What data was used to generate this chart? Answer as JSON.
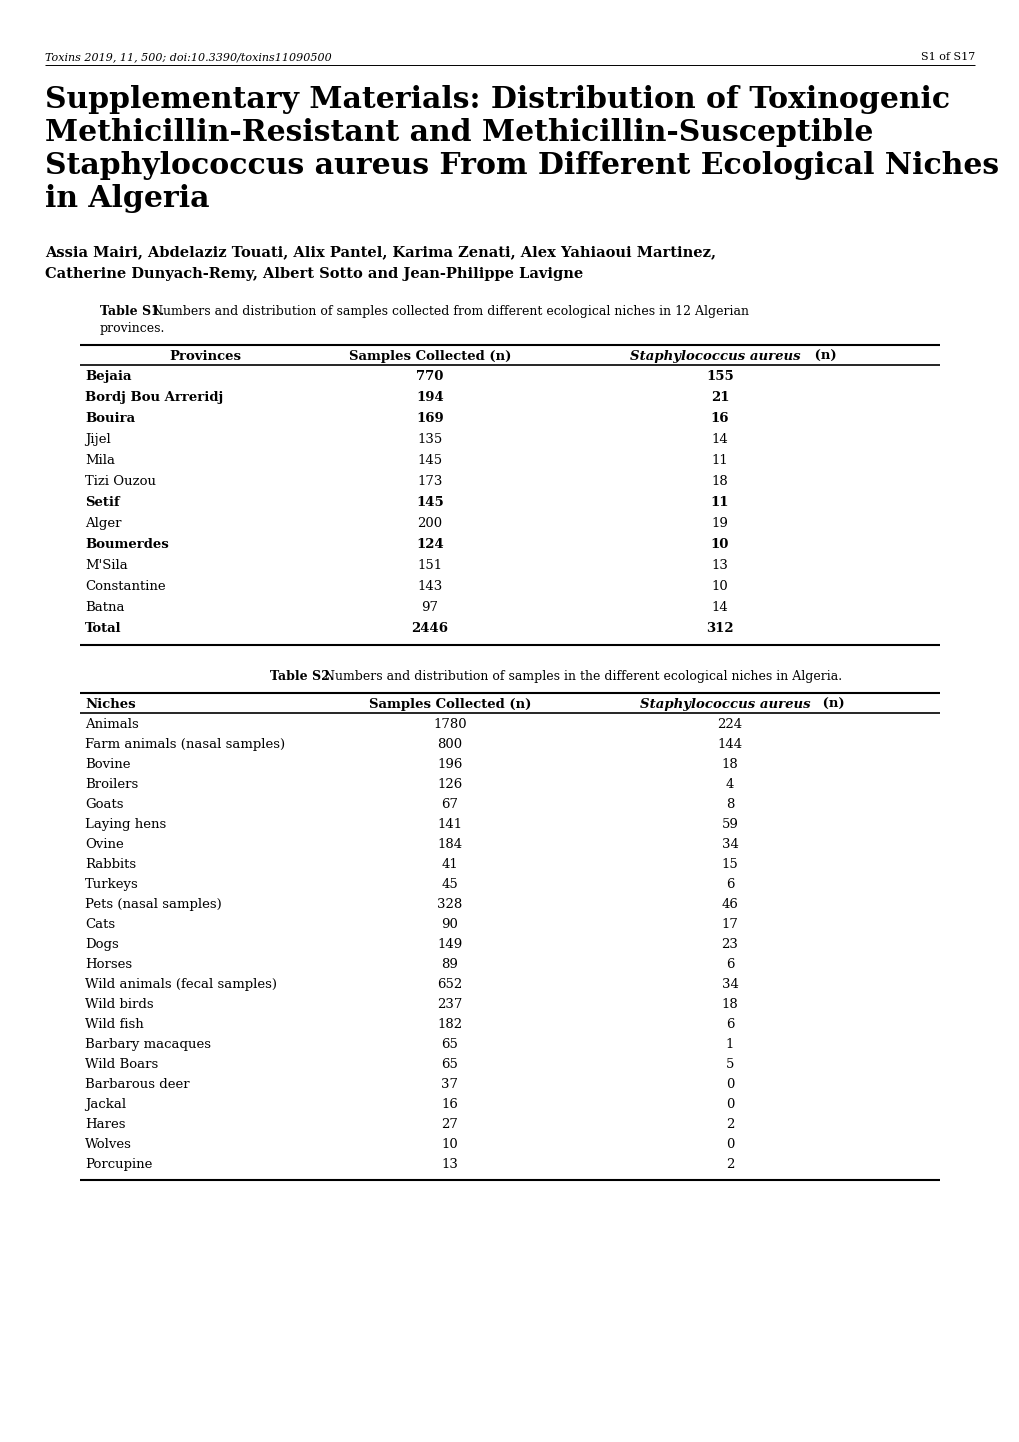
{
  "header_left": "Toxins 2019, 11, 500; doi:10.3390/toxins11090500",
  "header_right": "S1 of S17",
  "main_title_line1": "Supplementary Materials: Distribution of Toxinogenic",
  "main_title_line2": "Methicillin-Resistant and Methicillin-Susceptible",
  "main_title_line3": "Staphylococcus aureus From Different Ecological Niches",
  "main_title_line4": "in Algeria",
  "authors_line1": "Assia Mairi, Abdelaziz Touati, Alix Pantel, Karima Zenati, Alex Yahiaoui Martinez,",
  "authors_line2": "Catherine Dunyach-Remy, Albert Sotto and Jean-Philippe Lavigne",
  "table1_caption_bold": "Table S1.",
  "table1_caption_rest": " Numbers and distribution of samples collected from different ecological niches in 12 Algerian",
  "table1_caption_line2": "provinces.",
  "table1_headers": [
    "Provinces",
    "Samples Collected (n)",
    "Staphylococcus aureus (n)"
  ],
  "table1_data": [
    [
      "Bejaia",
      "770",
      "155",
      true
    ],
    [
      "Bordj Bou Arreridj",
      "194",
      "21",
      true
    ],
    [
      "Bouira",
      "169",
      "16",
      true
    ],
    [
      "Jijel",
      "135",
      "14",
      false
    ],
    [
      "Mila",
      "145",
      "11",
      false
    ],
    [
      "Tizi Ouzou",
      "173",
      "18",
      false
    ],
    [
      "Setif",
      "145",
      "11",
      true
    ],
    [
      "Alger",
      "200",
      "19",
      false
    ],
    [
      "Boumerdes",
      "124",
      "10",
      true
    ],
    [
      "M'Sila",
      "151",
      "13",
      false
    ],
    [
      "Constantine",
      "143",
      "10",
      false
    ],
    [
      "Batna",
      "97",
      "14",
      false
    ],
    [
      "Total",
      "2446",
      "312",
      true
    ]
  ],
  "table2_caption_bold": "Table S2.",
  "table2_caption_rest": " Numbers and distribution of samples in the different ecological niches in Algeria.",
  "table2_headers": [
    "Niches",
    "Samples Collected (n)",
    "Staphylococcus aureus (n)"
  ],
  "table2_data": [
    [
      "Animals",
      "1780",
      "224"
    ],
    [
      "Farm animals (nasal samples)",
      "800",
      "144"
    ],
    [
      "Bovine",
      "196",
      "18"
    ],
    [
      "Broilers",
      "126",
      "4"
    ],
    [
      "Goats",
      "67",
      "8"
    ],
    [
      "Laying hens",
      "141",
      "59"
    ],
    [
      "Ovine",
      "184",
      "34"
    ],
    [
      "Rabbits",
      "41",
      "15"
    ],
    [
      "Turkeys",
      "45",
      "6"
    ],
    [
      "Pets (nasal samples)",
      "328",
      "46"
    ],
    [
      "Cats",
      "90",
      "17"
    ],
    [
      "Dogs",
      "149",
      "23"
    ],
    [
      "Horses",
      "89",
      "6"
    ],
    [
      "Wild animals (fecal samples)",
      "652",
      "34"
    ],
    [
      "Wild birds",
      "237",
      "18"
    ],
    [
      "Wild fish",
      "182",
      "6"
    ],
    [
      "Barbary macaques",
      "65",
      "1"
    ],
    [
      "Wild Boars",
      "65",
      "5"
    ],
    [
      "Barbarous deer",
      "37",
      "0"
    ],
    [
      "Jackal",
      "16",
      "0"
    ],
    [
      "Hares",
      "27",
      "2"
    ],
    [
      "Wolves",
      "10",
      "0"
    ],
    [
      "Porcupine",
      "13",
      "2"
    ]
  ],
  "background_color": "#ffffff"
}
